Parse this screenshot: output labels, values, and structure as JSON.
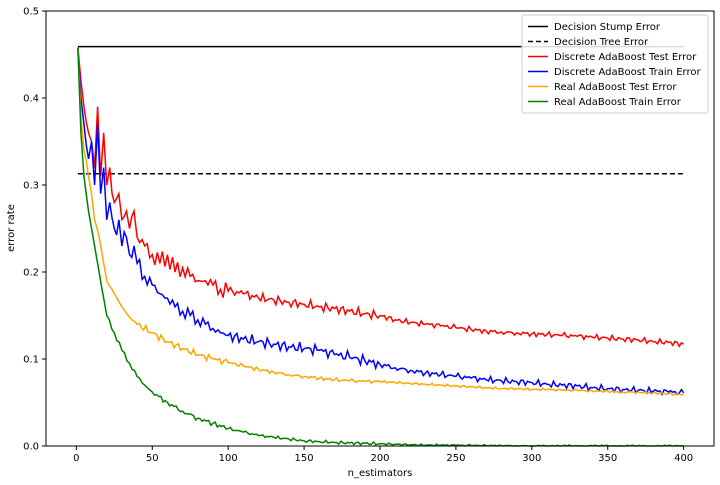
{
  "chart_data": {
    "type": "line",
    "xlabel": "n_estimators",
    "ylabel": "error rate",
    "xlim": [
      -20,
      420
    ],
    "ylim": [
      0,
      0.5
    ],
    "x_ticks": [
      0,
      50,
      100,
      150,
      200,
      250,
      300,
      350,
      400
    ],
    "y_ticks": [
      0.0,
      0.1,
      0.2,
      0.3,
      0.4,
      0.5
    ],
    "x_tick_labels": [
      "0",
      "50",
      "100",
      "150",
      "200",
      "250",
      "300",
      "350",
      "400"
    ],
    "y_tick_labels": [
      "0.0",
      "0.1",
      "0.2",
      "0.3",
      "0.4",
      "0.5"
    ],
    "grid": false,
    "legend_position": "top-right",
    "series": [
      {
        "name": "Decision Stump Error",
        "color": "#000000",
        "dash": "solid",
        "x": [
          1,
          400
        ],
        "y": [
          0.459,
          0.459
        ]
      },
      {
        "name": "Decision Tree Error",
        "color": "#000000",
        "dash": "dashed",
        "x": [
          1,
          400
        ],
        "y": [
          0.313,
          0.313
        ]
      },
      {
        "name": "Discrete AdaBoost Test Error",
        "color": "#ff0000",
        "dash": "solid",
        "x": [
          1,
          3,
          5,
          8,
          10,
          12,
          14,
          16,
          18,
          20,
          22,
          25,
          28,
          30,
          33,
          35,
          38,
          40,
          45,
          50,
          55,
          60,
          65,
          70,
          75,
          80,
          85,
          90,
          95,
          100,
          110,
          120,
          130,
          140,
          150,
          160,
          170,
          180,
          190,
          200,
          210,
          220,
          230,
          240,
          250,
          260,
          270,
          280,
          290,
          300,
          310,
          320,
          330,
          340,
          350,
          360,
          370,
          380,
          390,
          400
        ],
        "y": [
          0.458,
          0.42,
          0.39,
          0.36,
          0.35,
          0.32,
          0.39,
          0.31,
          0.36,
          0.3,
          0.32,
          0.28,
          0.29,
          0.26,
          0.27,
          0.25,
          0.27,
          0.24,
          0.23,
          0.22,
          0.21,
          0.22,
          0.2,
          0.205,
          0.195,
          0.19,
          0.19,
          0.185,
          0.18,
          0.178,
          0.175,
          0.17,
          0.168,
          0.165,
          0.163,
          0.16,
          0.158,
          0.155,
          0.152,
          0.15,
          0.145,
          0.142,
          0.14,
          0.138,
          0.136,
          0.134,
          0.132,
          0.131,
          0.13,
          0.129,
          0.128,
          0.127,
          0.126,
          0.125,
          0.124,
          0.123,
          0.122,
          0.12,
          0.119,
          0.117
        ]
      },
      {
        "name": "Discrete AdaBoost Train Error",
        "color": "#0000ff",
        "dash": "solid",
        "x": [
          1,
          3,
          5,
          8,
          10,
          12,
          14,
          16,
          18,
          20,
          22,
          25,
          28,
          30,
          33,
          35,
          38,
          40,
          45,
          50,
          55,
          60,
          65,
          70,
          75,
          80,
          85,
          90,
          95,
          100,
          110,
          120,
          130,
          140,
          150,
          160,
          170,
          180,
          190,
          200,
          210,
          220,
          230,
          240,
          250,
          260,
          270,
          280,
          290,
          300,
          310,
          320,
          330,
          340,
          350,
          360,
          370,
          380,
          390,
          400
        ],
        "y": [
          0.458,
          0.4,
          0.37,
          0.33,
          0.35,
          0.3,
          0.37,
          0.29,
          0.32,
          0.26,
          0.28,
          0.25,
          0.26,
          0.23,
          0.24,
          0.22,
          0.23,
          0.21,
          0.195,
          0.185,
          0.175,
          0.17,
          0.16,
          0.155,
          0.15,
          0.145,
          0.14,
          0.135,
          0.13,
          0.127,
          0.123,
          0.12,
          0.117,
          0.114,
          0.112,
          0.11,
          0.105,
          0.102,
          0.098,
          0.094,
          0.09,
          0.087,
          0.084,
          0.082,
          0.08,
          0.078,
          0.076,
          0.075,
          0.074,
          0.073,
          0.071,
          0.07,
          0.069,
          0.067,
          0.066,
          0.065,
          0.064,
          0.063,
          0.062,
          0.061
        ]
      },
      {
        "name": "Real AdaBoost Test Error",
        "color": "#ffa500",
        "dash": "solid",
        "x": [
          1,
          3,
          5,
          8,
          10,
          12,
          15,
          18,
          20,
          25,
          30,
          35,
          40,
          50,
          60,
          70,
          80,
          90,
          100,
          110,
          120,
          130,
          140,
          150,
          160,
          170,
          180,
          190,
          200,
          210,
          220,
          230,
          240,
          250,
          260,
          270,
          280,
          290,
          300,
          310,
          320,
          330,
          340,
          350,
          360,
          370,
          380,
          390,
          400
        ],
        "y": [
          0.458,
          0.38,
          0.34,
          0.31,
          0.29,
          0.26,
          0.24,
          0.21,
          0.19,
          0.175,
          0.16,
          0.148,
          0.14,
          0.13,
          0.12,
          0.112,
          0.105,
          0.1,
          0.096,
          0.092,
          0.088,
          0.085,
          0.082,
          0.08,
          0.078,
          0.076,
          0.075,
          0.074,
          0.074,
          0.073,
          0.072,
          0.071,
          0.07,
          0.069,
          0.068,
          0.067,
          0.066,
          0.066,
          0.065,
          0.065,
          0.064,
          0.064,
          0.063,
          0.063,
          0.062,
          0.062,
          0.061,
          0.06,
          0.059
        ]
      },
      {
        "name": "Real AdaBoost Train Error",
        "color": "#008000",
        "dash": "solid",
        "x": [
          1,
          3,
          5,
          8,
          10,
          12,
          15,
          18,
          20,
          25,
          30,
          35,
          40,
          45,
          50,
          60,
          70,
          80,
          90,
          100,
          110,
          120,
          130,
          140,
          150,
          160,
          170,
          180,
          190,
          200,
          210,
          220,
          230,
          240,
          250,
          260,
          270,
          280,
          290,
          300,
          320,
          340,
          360,
          380,
          400
        ],
        "y": [
          0.458,
          0.36,
          0.31,
          0.27,
          0.25,
          0.23,
          0.2,
          0.17,
          0.15,
          0.13,
          0.11,
          0.095,
          0.08,
          0.07,
          0.062,
          0.05,
          0.04,
          0.032,
          0.026,
          0.02,
          0.016,
          0.012,
          0.01,
          0.008,
          0.006,
          0.005,
          0.004,
          0.0035,
          0.003,
          0.0025,
          0.002,
          0.0015,
          0.001,
          0.001,
          0.0008,
          0.0006,
          0.0005,
          0.0004,
          0.0003,
          0.0002,
          0.0001,
          0.0001,
          0.0,
          0.0,
          0.0
        ]
      }
    ]
  }
}
